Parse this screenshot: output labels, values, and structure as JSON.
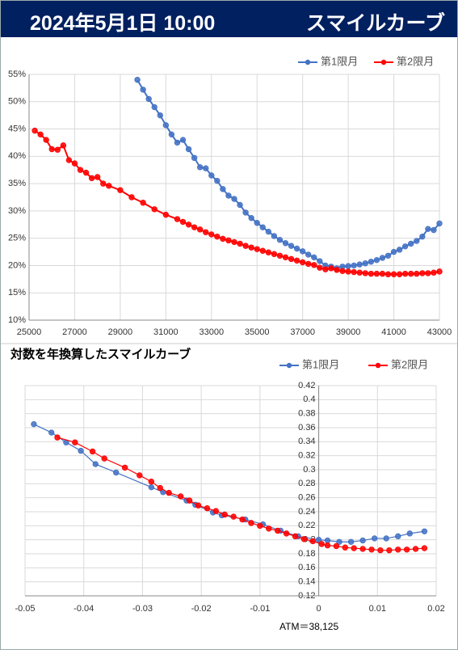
{
  "header": {
    "date": "2024年5月1日 10:00",
    "title": "スマイルカーブ"
  },
  "chart_data": [
    {
      "type": "line",
      "grid": true,
      "xlim": [
        25000,
        43000
      ],
      "xticks": [
        25000,
        27000,
        29000,
        31000,
        33000,
        35000,
        37000,
        39000,
        41000,
        43000
      ],
      "ylim": [
        10,
        55
      ],
      "yticks": [
        {
          "value": 10,
          "label": "10%"
        },
        {
          "value": 15,
          "label": "15%"
        },
        {
          "value": 20,
          "label": "20%"
        },
        {
          "value": 25,
          "label": "25%"
        },
        {
          "value": 30,
          "label": "30%"
        },
        {
          "value": 35,
          "label": "35%"
        },
        {
          "value": 40,
          "label": "40%"
        },
        {
          "value": 45,
          "label": "45%"
        },
        {
          "value": 50,
          "label": "50%"
        },
        {
          "value": 55,
          "label": "55%"
        }
      ],
      "series": [
        {
          "name": "第1限月",
          "color": "#4472c4",
          "x": [
            29750,
            30000,
            30250,
            30500,
            30750,
            31000,
            31250,
            31500,
            31750,
            32000,
            32250,
            32500,
            32750,
            33000,
            33250,
            33500,
            33750,
            34000,
            34250,
            34500,
            34750,
            35000,
            35250,
            35500,
            35750,
            36000,
            36250,
            36500,
            36750,
            37000,
            37250,
            37500,
            37750,
            38000,
            38250,
            38500,
            38750,
            39000,
            39250,
            39500,
            39750,
            40000,
            40250,
            40500,
            40750,
            41000,
            41250,
            41500,
            41750,
            42000,
            42250,
            42500,
            42750,
            43000
          ],
          "values": [
            54,
            52.2,
            50.5,
            49,
            47.5,
            45.7,
            44,
            42.5,
            43,
            41.3,
            39.7,
            38,
            37.8,
            36.5,
            35.5,
            34,
            32.8,
            32.2,
            31.1,
            29.7,
            28.7,
            27.8,
            27,
            26.2,
            25.4,
            24.7,
            24.1,
            23.6,
            23.1,
            22.6,
            22,
            21.5,
            20.8,
            20,
            19.8,
            19.5,
            19.8,
            19.9,
            20,
            20.2,
            20.4,
            20.7,
            21,
            21.4,
            21.8,
            22.5,
            22.9,
            23.5,
            24,
            24.5,
            25.3,
            26.7,
            26.5,
            27.7
          ]
        },
        {
          "name": "第2限月",
          "color": "#ff0000",
          "x": [
            25250,
            25500,
            25750,
            26000,
            26250,
            26500,
            26750,
            27000,
            27250,
            27500,
            27750,
            28000,
            28250,
            28500,
            29000,
            29500,
            30000,
            30500,
            31000,
            31500,
            31750,
            32000,
            32250,
            32500,
            32750,
            33000,
            33250,
            33500,
            33750,
            34000,
            34250,
            34500,
            34750,
            35000,
            35250,
            35500,
            35750,
            36000,
            36250,
            36500,
            36750,
            37000,
            37250,
            37500,
            37750,
            38000,
            38250,
            38500,
            38750,
            39000,
            39250,
            39500,
            39750,
            40000,
            40250,
            40500,
            40750,
            41000,
            41250,
            41500,
            41750,
            42000,
            42250,
            42500,
            42750,
            43000
          ],
          "values": [
            44.7,
            44,
            43,
            41.3,
            41.2,
            42,
            39.3,
            38.7,
            37.5,
            37,
            36,
            36.2,
            35,
            34.6,
            33.8,
            32.5,
            31.5,
            30.3,
            29.3,
            28.5,
            28,
            27.5,
            27,
            26.6,
            26.1,
            25.7,
            25.3,
            24.9,
            24.6,
            24.3,
            24,
            23.6,
            23.3,
            23,
            22.7,
            22.4,
            22.1,
            21.8,
            21.5,
            21.2,
            20.9,
            20.6,
            20.3,
            20.1,
            19.6,
            19.3,
            19.5,
            19.2,
            19,
            18.9,
            18.8,
            18.7,
            18.6,
            18.5,
            18.5,
            18.5,
            18.4,
            18.4,
            18.4,
            18.5,
            18.5,
            18.5,
            18.6,
            18.6,
            18.7,
            18.9
          ]
        }
      ]
    },
    {
      "type": "line",
      "grid": true,
      "title": "対数を年換算したスマイルカーブ",
      "annotation": "ATM＝38,125",
      "xlim": [
        -0.05,
        0.02
      ],
      "xticks": [
        -0.05,
        -0.04,
        -0.03,
        -0.02,
        -0.01,
        0,
        0.01,
        0.02
      ],
      "ylim": [
        0.12,
        0.42
      ],
      "yticks": [
        0.12,
        0.14,
        0.16,
        0.18,
        0.2,
        0.22,
        0.24,
        0.26,
        0.28,
        0.3,
        0.32,
        0.34,
        0.36,
        0.38,
        0.4,
        0.42
      ],
      "series": [
        {
          "name": "第1限月",
          "color": "#4472c4",
          "x": [
            -0.0485,
            -0.0455,
            -0.043,
            -0.0405,
            -0.038,
            -0.0345,
            -0.0285,
            -0.0265,
            -0.0225,
            -0.021,
            -0.018,
            -0.0165,
            -0.0125,
            -0.0095,
            -0.0065,
            -0.0035,
            0,
            0.0015,
            0.0035,
            0.0055,
            0.0075,
            0.0095,
            0.0115,
            0.0135,
            0.0155,
            0.018
          ],
          "values": [
            0.365,
            0.353,
            0.339,
            0.327,
            0.308,
            0.296,
            0.275,
            0.268,
            0.256,
            0.25,
            0.239,
            0.235,
            0.229,
            0.222,
            0.213,
            0.205,
            0.2,
            0.199,
            0.197,
            0.197,
            0.199,
            0.202,
            0.202,
            0.205,
            0.209,
            0.212
          ]
        },
        {
          "name": "第2限月",
          "color": "#ff0000",
          "x": [
            -0.0445,
            -0.0415,
            -0.0385,
            -0.0365,
            -0.033,
            -0.0305,
            -0.0285,
            -0.027,
            -0.0255,
            -0.0235,
            -0.022,
            -0.0205,
            -0.019,
            -0.0175,
            -0.016,
            -0.0145,
            -0.013,
            -0.0115,
            -0.01,
            -0.0085,
            -0.007,
            -0.0055,
            -0.004,
            -0.0025,
            -0.001,
            0.0005,
            0.0015,
            0.003,
            0.0045,
            0.006,
            0.0075,
            0.009,
            0.0105,
            0.012,
            0.0135,
            0.015,
            0.0165,
            0.018
          ],
          "values": [
            0.346,
            0.339,
            0.326,
            0.316,
            0.303,
            0.292,
            0.283,
            0.274,
            0.267,
            0.262,
            0.256,
            0.249,
            0.245,
            0.241,
            0.236,
            0.233,
            0.229,
            0.224,
            0.22,
            0.216,
            0.213,
            0.209,
            0.205,
            0.201,
            0.198,
            0.194,
            0.192,
            0.191,
            0.189,
            0.188,
            0.187,
            0.186,
            0.185,
            0.185,
            0.186,
            0.186,
            0.187,
            0.188
          ]
        }
      ]
    }
  ]
}
